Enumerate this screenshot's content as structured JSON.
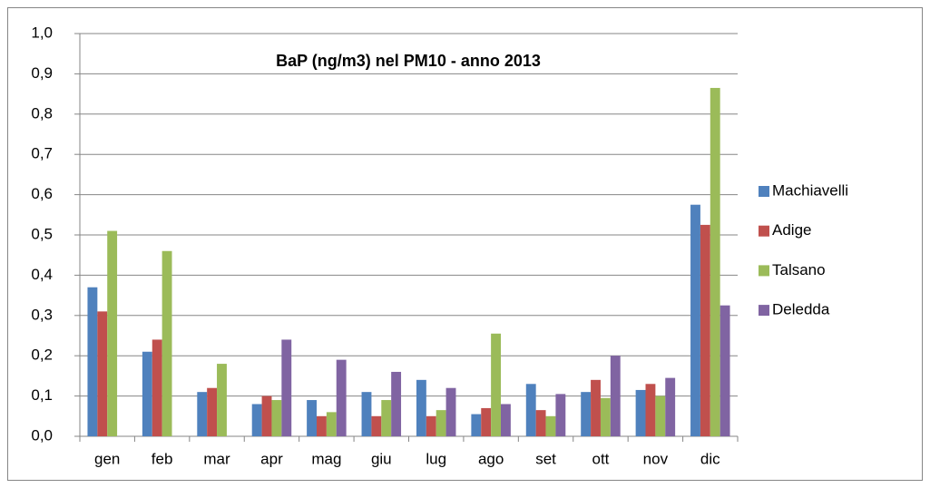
{
  "chart_data": {
    "type": "bar",
    "title": "BaP  (ng/m3) nel PM10 - anno 2013",
    "categories": [
      "gen",
      "feb",
      "mar",
      "apr",
      "mag",
      "giu",
      "lug",
      "ago",
      "set",
      "ott",
      "nov",
      "dic"
    ],
    "series": [
      {
        "name": "Machiavelli",
        "color": "#4f81bd",
        "values": [
          0.37,
          0.21,
          0.11,
          0.08,
          0.09,
          0.11,
          0.14,
          0.055,
          0.13,
          0.11,
          0.115,
          0.575
        ]
      },
      {
        "name": "Adige",
        "color": "#c0504d",
        "values": [
          0.31,
          0.24,
          0.12,
          0.1,
          0.05,
          0.05,
          0.05,
          0.07,
          0.065,
          0.14,
          0.13,
          0.525
        ]
      },
      {
        "name": "Talsano",
        "color": "#9bbb59",
        "values": [
          0.51,
          0.46,
          0.18,
          0.09,
          0.06,
          0.09,
          0.065,
          0.255,
          0.05,
          0.095,
          0.1,
          0.865
        ]
      },
      {
        "name": "Deledda",
        "color": "#8064a2",
        "values": [
          null,
          null,
          null,
          0.24,
          0.19,
          0.16,
          0.12,
          0.08,
          0.105,
          0.2,
          0.145,
          0.325
        ]
      }
    ],
    "ylim": [
      0,
      1
    ],
    "yticks": [
      {
        "value": 0,
        "label": "0,0"
      },
      {
        "value": 0.1,
        "label": "0,1"
      },
      {
        "value": 0.2,
        "label": "0,2"
      },
      {
        "value": 0.3,
        "label": "0,3"
      },
      {
        "value": 0.4,
        "label": "0,4"
      },
      {
        "value": 0.5,
        "label": "0,5"
      },
      {
        "value": 0.6,
        "label": "0,6"
      },
      {
        "value": 0.7,
        "label": "0,7"
      },
      {
        "value": 0.8,
        "label": "0,8"
      },
      {
        "value": 0.9,
        "label": "0,9"
      },
      {
        "value": 1,
        "label": "1,0"
      }
    ],
    "grid": true,
    "legend": "right"
  }
}
